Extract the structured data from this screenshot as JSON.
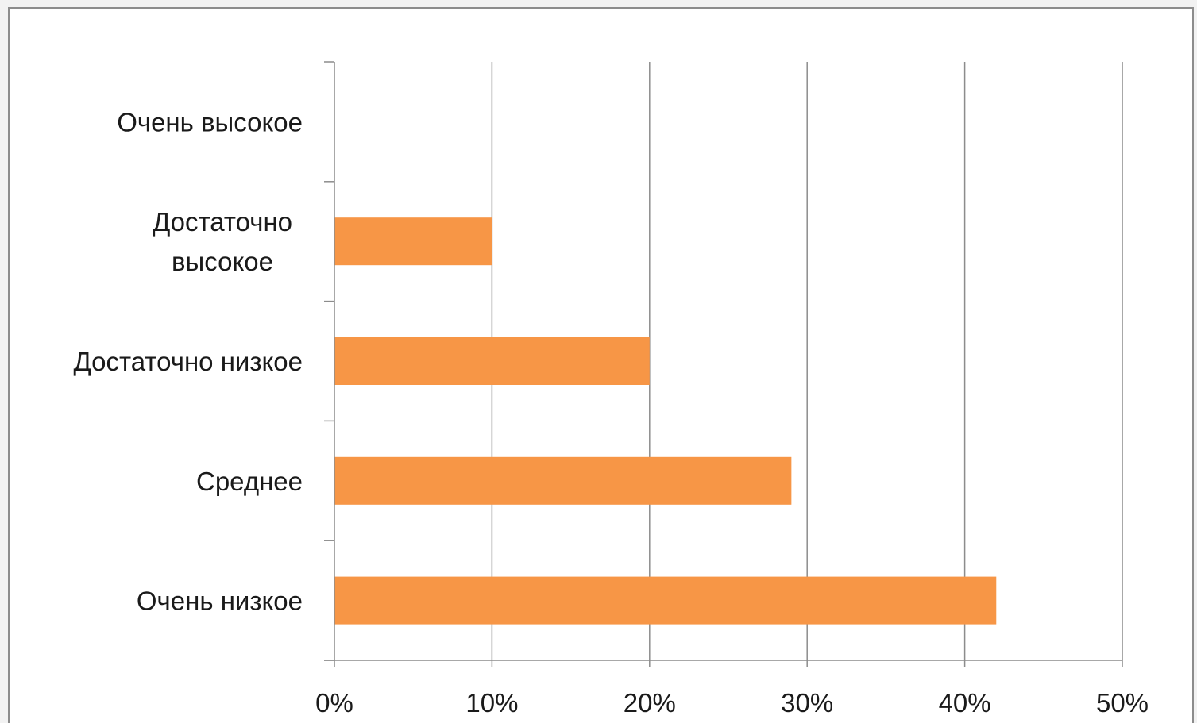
{
  "chart_data": {
    "type": "bar",
    "orientation": "horizontal",
    "categories": [
      [
        "Очень высокое"
      ],
      [
        "Достаточно",
        "высокое"
      ],
      [
        "Достаточно низкое"
      ],
      [
        "Среднее"
      ],
      [
        "Очень низкое"
      ]
    ],
    "values": [
      0,
      10,
      20,
      29,
      42
    ],
    "value_unit": "%",
    "xlim": [
      0,
      50
    ],
    "x_ticks": [
      0,
      10,
      20,
      30,
      40,
      50
    ],
    "x_tick_labels": [
      "0%",
      "10%",
      "20%",
      "30%",
      "40%",
      "50%"
    ],
    "grid": "vertical",
    "legend": "none",
    "colors": {
      "bar": "#f79646",
      "grid": "#8c8c8c",
      "axis": "#8c8c8c"
    }
  }
}
